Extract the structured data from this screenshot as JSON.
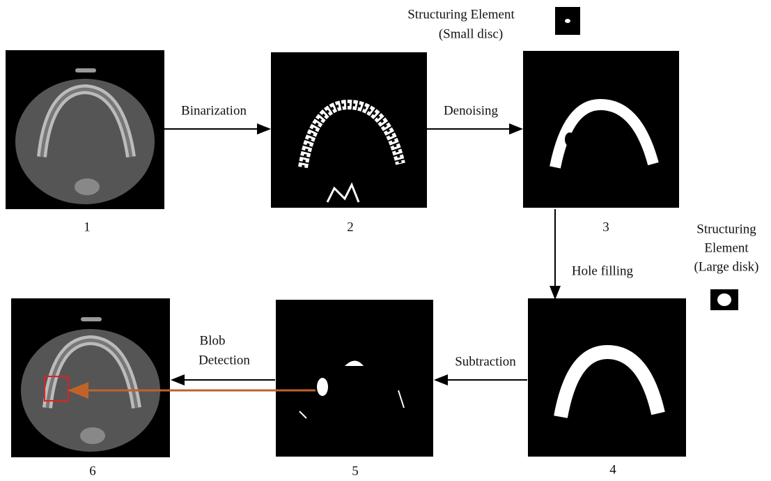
{
  "nodes": [
    {
      "label": "1"
    },
    {
      "label": "2"
    },
    {
      "label": "3"
    },
    {
      "label": "4"
    },
    {
      "label": "5"
    },
    {
      "label": "6"
    }
  ],
  "edges": [
    {
      "label": "Binarization"
    },
    {
      "label": "Denoising"
    },
    {
      "label": "Hole filling"
    },
    {
      "label": "Subtraction"
    },
    {
      "label": "Blob",
      "label2": "Detection"
    }
  ],
  "structuring_small": {
    "line1": "Structuring Element",
    "line2": "(Small disc)"
  },
  "structuring_large": {
    "line1": "Structuring",
    "line2": "Element",
    "line3": "(Large disk)"
  }
}
